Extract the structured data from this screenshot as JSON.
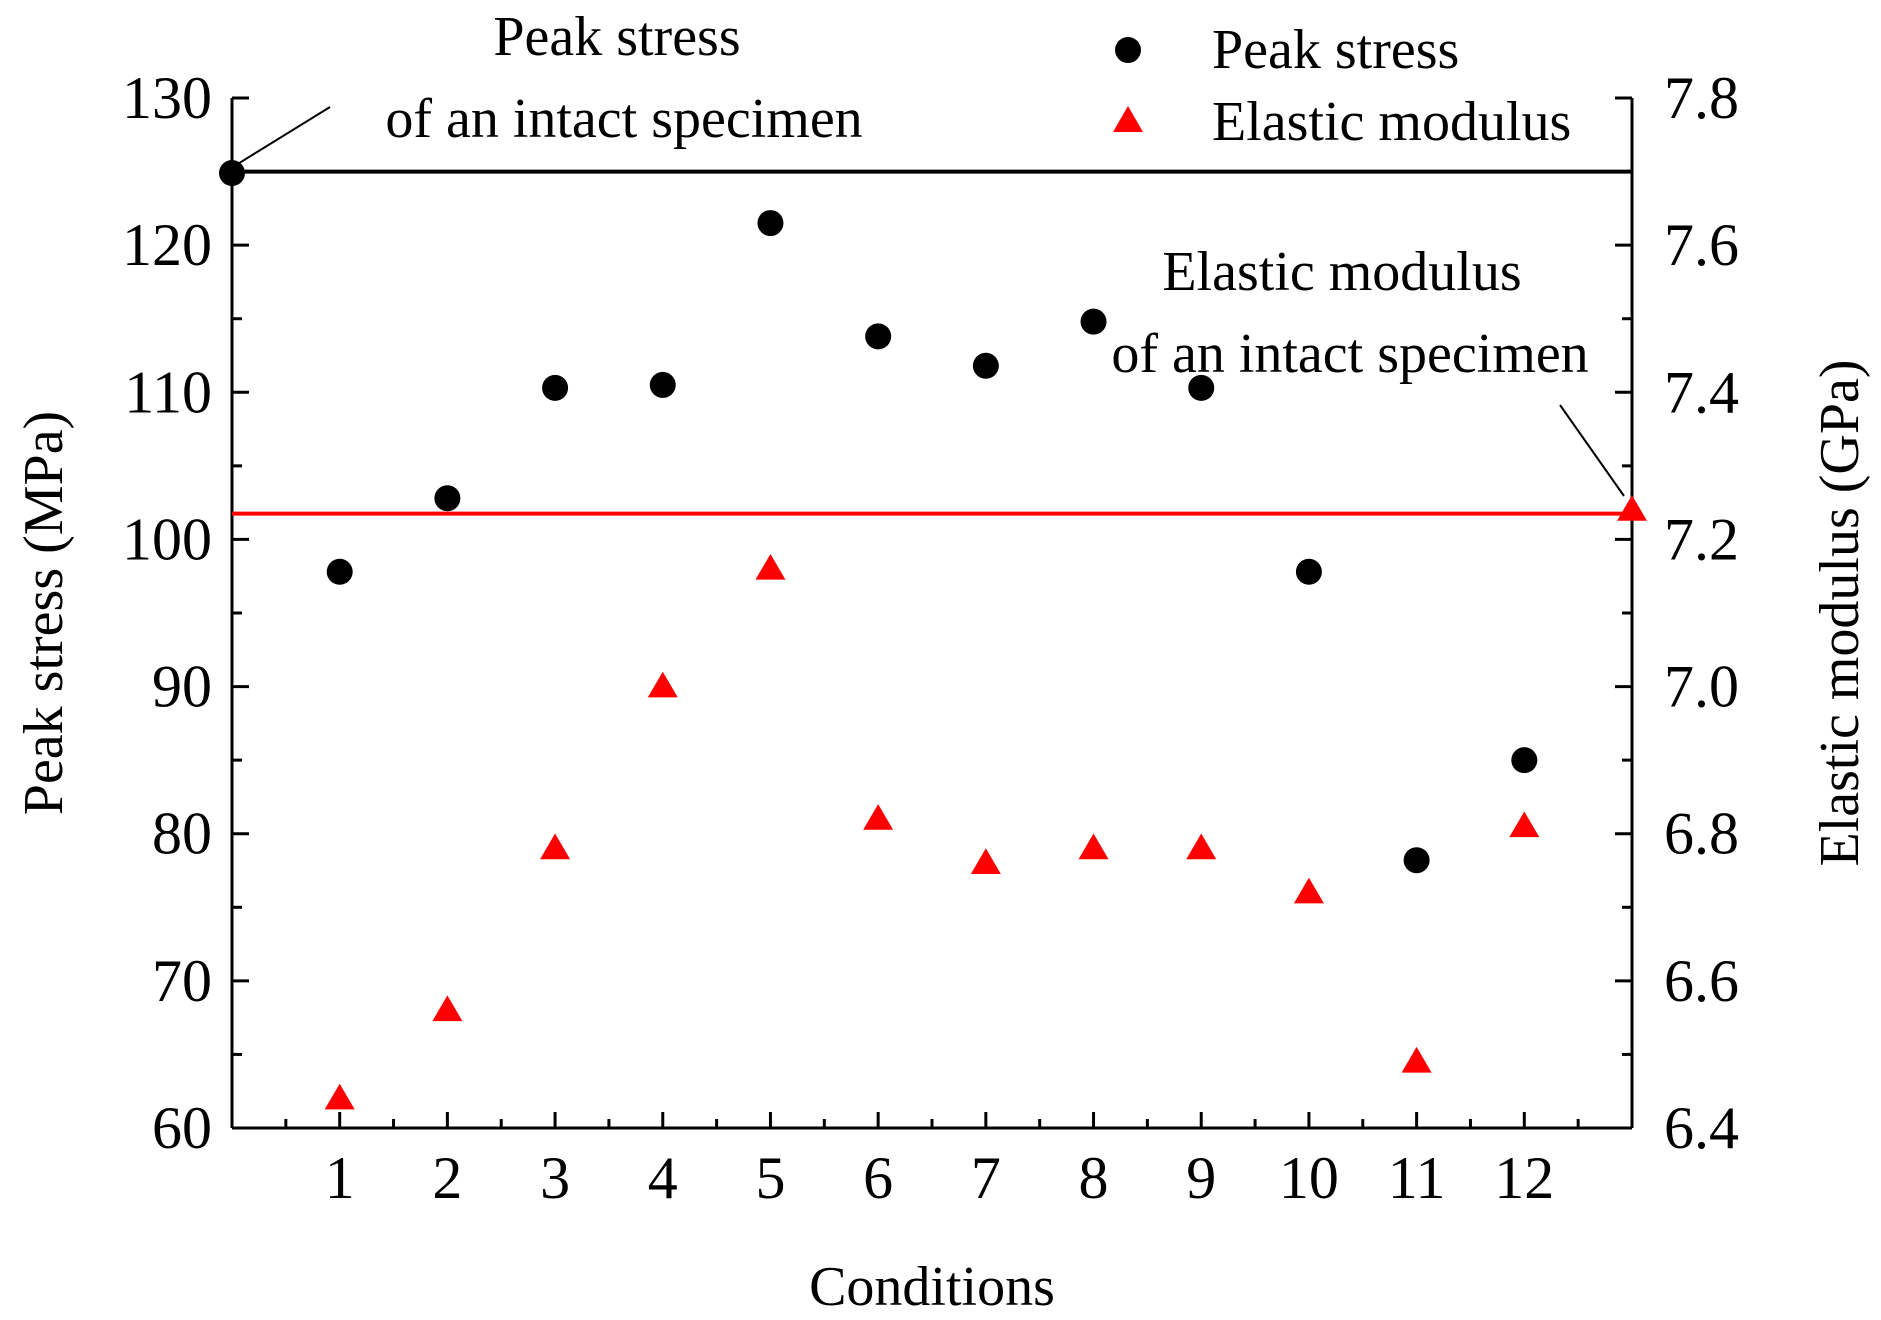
{
  "chart_data": {
    "type": "scatter",
    "xlabel": "Conditions",
    "ylabel_left": "Peak stress (MPa)",
    "ylabel_right": "Elastic modulus (GPa)",
    "xlim": [
      0,
      13
    ],
    "ylim_left": [
      60,
      130
    ],
    "ylim_right": [
      6.4,
      7.8
    ],
    "x_ticks": [
      1,
      2,
      3,
      4,
      5,
      6,
      7,
      8,
      9,
      10,
      11,
      12
    ],
    "y_ticks_left": [
      60,
      70,
      80,
      90,
      100,
      110,
      120,
      130
    ],
    "y_ticks_right": [
      "6.4",
      "6.6",
      "6.8",
      "7.0",
      "7.2",
      "7.4",
      "7.6",
      "7.8"
    ],
    "series": [
      {
        "name": "Peak stress",
        "axis": "left",
        "marker": "circle",
        "color": "#000000",
        "x": [
          0,
          1,
          2,
          3,
          4,
          5,
          6,
          7,
          8,
          9,
          10,
          11,
          12
        ],
        "values": [
          124.9,
          97.8,
          102.8,
          110.3,
          110.5,
          121.5,
          113.8,
          111.8,
          114.8,
          110.3,
          97.8,
          78.2,
          85.0
        ]
      },
      {
        "name": "Elastic modulus",
        "axis": "right",
        "marker": "triangle",
        "color": "#ff0000",
        "x": [
          1,
          2,
          3,
          4,
          5,
          6,
          7,
          8,
          9,
          10,
          11,
          12,
          13
        ],
        "values": [
          6.44,
          6.56,
          6.78,
          7.0,
          7.16,
          6.82,
          6.76,
          6.78,
          6.78,
          6.72,
          6.49,
          6.81,
          7.24
        ]
      }
    ],
    "reference_lines": [
      {
        "name": "Peak stress of an intact specimen",
        "axis": "left",
        "value": 125.0,
        "color": "#000000"
      },
      {
        "name": "Elastic modulus of an intact specimen",
        "axis": "right",
        "value": 7.235,
        "color": "#ff0000"
      }
    ],
    "annotations": [
      {
        "lines": [
          "Peak stress",
          "of an intact specimen"
        ],
        "target_series": 0
      },
      {
        "lines": [
          "Elastic modulus",
          "of an intact specimen"
        ],
        "target_series": 1
      }
    ],
    "legend": {
      "position": "top-right",
      "entries": [
        "Peak stress",
        "Elastic modulus"
      ]
    }
  }
}
